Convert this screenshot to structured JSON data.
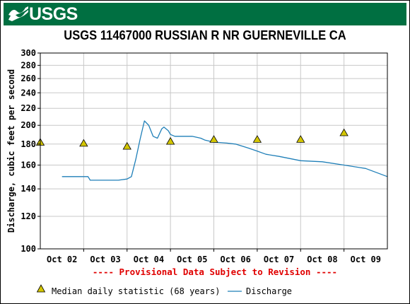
{
  "header": {
    "logo_text": "USGS",
    "logo_icon": "usgs-wave-logo-icon",
    "background_color": "#006f41"
  },
  "chart_data": {
    "type": "line",
    "title": "USGS 11467000 RUSSIAN R NR GUERNEVILLE CA",
    "ylabel": "Discharge, cubic feet per second",
    "xlabel": "",
    "y_scale": "log",
    "ylim": [
      100,
      300
    ],
    "y_ticks": [
      100,
      120,
      140,
      160,
      180,
      200,
      220,
      240,
      260,
      280,
      300
    ],
    "x_ticks": [
      "Oct 02",
      "Oct 03",
      "Oct 04",
      "Oct 05",
      "Oct 06",
      "Oct 07",
      "Oct 08",
      "Oct 09"
    ],
    "grid": true,
    "provisional_note": "---- Provisional Data Subject to Revision ----",
    "legend_placement": "bottom",
    "series": [
      {
        "name": "Discharge",
        "color": "#1f7fb8",
        "x": [
          0.0,
          0.6,
          0.65,
          0.85,
          1.0,
          1.3,
          1.5,
          1.6,
          1.7,
          1.8,
          1.9,
          2.0,
          2.1,
          2.2,
          2.3,
          2.35,
          2.45,
          2.5,
          2.6,
          2.8,
          3.0,
          3.2,
          3.3,
          3.5,
          3.8,
          4.0,
          4.3,
          4.5,
          4.7,
          5.0,
          5.5,
          6.0,
          6.5,
          7.0,
          7.5
        ],
        "values": [
          150,
          150,
          147,
          147,
          147,
          147,
          148,
          150,
          165,
          185,
          205,
          200,
          188,
          186,
          196,
          198,
          194,
          190,
          188,
          188,
          188,
          186,
          184,
          182,
          181,
          180,
          176,
          173,
          170,
          168,
          164,
          163,
          160,
          157,
          150
        ]
      },
      {
        "name": "Median daily statistic (68 years)",
        "type": "scatter",
        "marker": "triangle",
        "color": "#d4c600",
        "x": [
          -0.5,
          0.5,
          1.5,
          2.5,
          3.5,
          4.5,
          5.5,
          6.5
        ],
        "values": [
          182,
          181,
          178,
          183,
          185,
          185,
          185,
          192
        ]
      }
    ]
  },
  "legend": {
    "median_label": "Median daily statistic (68 years)",
    "discharge_label": "Discharge"
  }
}
